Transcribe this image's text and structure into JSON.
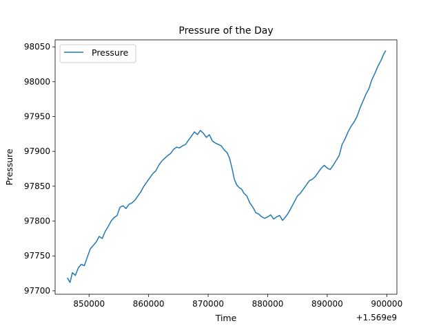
{
  "chart_data": {
    "type": "line",
    "title": "Pressure of the Day",
    "xlabel": "Time",
    "ylabel": "Pressure",
    "x_offset_label": "+1.569e9",
    "xlim": [
      844300,
      901700
    ],
    "ylim": [
      97695,
      98060
    ],
    "x_ticks": [
      850000,
      860000,
      870000,
      880000,
      890000,
      900000
    ],
    "y_ticks": [
      97700,
      97750,
      97800,
      97850,
      97900,
      97950,
      98000,
      98050
    ],
    "x_tick_labels": [
      "850000",
      "860000",
      "870000",
      "880000",
      "890000",
      "900000"
    ],
    "y_tick_labels": [
      "97700",
      "97750",
      "97800",
      "97850",
      "97900",
      "97950",
      "98000",
      "98050"
    ],
    "grid": false,
    "legend": {
      "position": "top-left"
    },
    "colors": {
      "series": "#1f77b4"
    },
    "series": [
      {
        "name": "Pressure",
        "x": [
          846400,
          846800,
          847200,
          847700,
          848200,
          848700,
          849200,
          849700,
          850200,
          850700,
          851200,
          851700,
          852200,
          852700,
          853200,
          853700,
          854200,
          854700,
          855200,
          855700,
          856200,
          856700,
          857200,
          857700,
          858200,
          858700,
          859200,
          859700,
          860200,
          860700,
          861200,
          861700,
          862200,
          862700,
          863200,
          863700,
          864200,
          864700,
          865200,
          865700,
          866200,
          866700,
          867200,
          867700,
          868200,
          868700,
          869200,
          869700,
          870200,
          870700,
          871200,
          871700,
          872200,
          872700,
          873200,
          873600,
          874000,
          874400,
          874800,
          875200,
          875600,
          876000,
          876500,
          877000,
          877500,
          878000,
          878500,
          879000,
          879500,
          880000,
          880500,
          881000,
          881500,
          882000,
          882500,
          883000,
          883500,
          884000,
          884500,
          885000,
          885500,
          886000,
          886500,
          887000,
          887500,
          888000,
          888500,
          889000,
          889500,
          890000,
          890500,
          891000,
          891500,
          892000,
          892500,
          893000,
          893500,
          894000,
          894500,
          895000,
          895500,
          896000,
          896500,
          897000,
          897500,
          898000,
          898500,
          899000,
          899500,
          899800
        ],
        "y": [
          97718,
          97712,
          97726,
          97722,
          97733,
          97738,
          97736,
          97748,
          97760,
          97765,
          97770,
          97778,
          97775,
          97785,
          97792,
          97800,
          97805,
          97808,
          97820,
          97822,
          97818,
          97824,
          97826,
          97830,
          97836,
          97842,
          97850,
          97856,
          97862,
          97868,
          97872,
          97880,
          97886,
          97890,
          97894,
          97897,
          97903,
          97906,
          97905,
          97908,
          97910,
          97916,
          97922,
          97928,
          97924,
          97930,
          97926,
          97920,
          97924,
          97915,
          97912,
          97910,
          97908,
          97902,
          97898,
          97890,
          97876,
          97860,
          97852,
          97848,
          97846,
          97840,
          97836,
          97826,
          97820,
          97812,
          97810,
          97806,
          97804,
          97806,
          97809,
          97803,
          97806,
          97808,
          97801,
          97806,
          97812,
          97820,
          97828,
          97836,
          97840,
          97846,
          97852,
          97858,
          97860,
          97864,
          97870,
          97876,
          97880,
          97876,
          97874,
          97880,
          97887,
          97894,
          97910,
          97918,
          97928,
          97936,
          97942,
          97950,
          97962,
          97972,
          97982,
          97990,
          98003,
          98012,
          98022,
          98030,
          98040,
          98044
        ]
      }
    ]
  }
}
